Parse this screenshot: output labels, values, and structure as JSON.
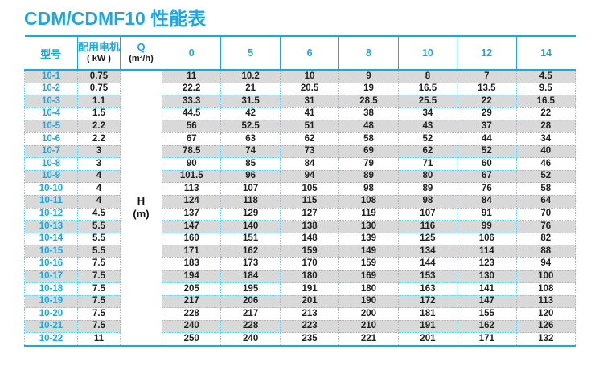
{
  "page_title": "CDM/CDMF10 性能表",
  "chart_data": {
    "type": "table",
    "title": "CDM/CDMF10 性能表",
    "columns": {
      "model_label": "型号",
      "motor_label_line1": "配用电机",
      "motor_label_line2": "( kW )",
      "flow_label_line1": "Q",
      "flow_label_line2": "(m³/h)",
      "flow_rates": [
        "0",
        "5",
        "6",
        "8",
        "10",
        "12",
        "14"
      ]
    },
    "head_unit_label_line1": "H",
    "head_unit_label_line2": "(m)",
    "rows": [
      {
        "model": "10-1",
        "kw": "0.75",
        "head": [
          "11",
          "10.2",
          "10",
          "9",
          "8",
          "7",
          "4.5"
        ]
      },
      {
        "model": "10-2",
        "kw": "0.75",
        "head": [
          "22.2",
          "21",
          "20.5",
          "19",
          "16.5",
          "13.5",
          "9.5"
        ]
      },
      {
        "model": "10-3",
        "kw": "1.1",
        "head": [
          "33.3",
          "31.5",
          "31",
          "28.5",
          "25.5",
          "22",
          "16.5"
        ]
      },
      {
        "model": "10-4",
        "kw": "1.5",
        "head": [
          "44.5",
          "42",
          "41",
          "38",
          "34",
          "29",
          "22"
        ]
      },
      {
        "model": "10-5",
        "kw": "2.2",
        "head": [
          "56",
          "52.5",
          "51",
          "48",
          "43",
          "37",
          "28"
        ]
      },
      {
        "model": "10-6",
        "kw": "2.2",
        "head": [
          "67",
          "63",
          "62",
          "58",
          "52",
          "44",
          "34"
        ]
      },
      {
        "model": "10-7",
        "kw": "3",
        "head": [
          "78.5",
          "74",
          "73",
          "69",
          "62",
          "52",
          "40"
        ]
      },
      {
        "model": "10-8",
        "kw": "3",
        "head": [
          "90",
          "85",
          "84",
          "79",
          "71",
          "60",
          "46"
        ]
      },
      {
        "model": "10-9",
        "kw": "4",
        "head": [
          "101.5",
          "96",
          "94",
          "89",
          "80",
          "67",
          "52"
        ]
      },
      {
        "model": "10-10",
        "kw": "4",
        "head": [
          "113",
          "107",
          "105",
          "98",
          "89",
          "76",
          "58"
        ]
      },
      {
        "model": "10-11",
        "kw": "4",
        "head": [
          "124",
          "118",
          "115",
          "108",
          "98",
          "84",
          "64"
        ]
      },
      {
        "model": "10-12",
        "kw": "4.5",
        "head": [
          "137",
          "129",
          "127",
          "119",
          "107",
          "91",
          "70"
        ]
      },
      {
        "model": "10-13",
        "kw": "5.5",
        "head": [
          "147",
          "140",
          "138",
          "130",
          "116",
          "99",
          "76"
        ]
      },
      {
        "model": "10-14",
        "kw": "5.5",
        "head": [
          "160",
          "151",
          "148",
          "139",
          "125",
          "106",
          "82"
        ]
      },
      {
        "model": "10-15",
        "kw": "5.5",
        "head": [
          "171",
          "162",
          "159",
          "149",
          "134",
          "114",
          "88"
        ]
      },
      {
        "model": "10-16",
        "kw": "7.5",
        "head": [
          "183",
          "173",
          "170",
          "159",
          "144",
          "123",
          "94"
        ]
      },
      {
        "model": "10-17",
        "kw": "7.5",
        "head": [
          "194",
          "184",
          "180",
          "169",
          "153",
          "130",
          "100"
        ]
      },
      {
        "model": "10-18",
        "kw": "7.5",
        "head": [
          "205",
          "195",
          "191",
          "180",
          "163",
          "141",
          "108"
        ]
      },
      {
        "model": "10-19",
        "kw": "7.5",
        "head": [
          "217",
          "206",
          "201",
          "190",
          "172",
          "147",
          "113"
        ]
      },
      {
        "model": "10-20",
        "kw": "7.5",
        "head": [
          "228",
          "217",
          "213",
          "200",
          "181",
          "155",
          "120"
        ]
      },
      {
        "model": "10-21",
        "kw": "7.5",
        "head": [
          "240",
          "228",
          "223",
          "210",
          "191",
          "162",
          "126"
        ]
      },
      {
        "model": "10-22",
        "kw": "11",
        "head": [
          "250",
          "240",
          "235",
          "221",
          "201",
          "171",
          "132"
        ]
      }
    ]
  },
  "colors": {
    "accent": "#1ba7e2",
    "title_text": "#1ba7e2",
    "row_shade_bg": "#d9d9d9",
    "dotted_border": "#6fccee",
    "data_text": "#1f1f1f"
  }
}
